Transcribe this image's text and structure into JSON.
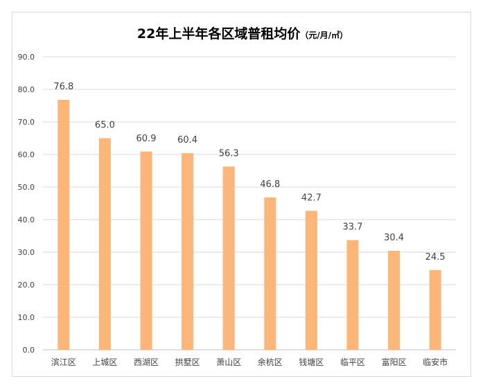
{
  "chart_data": {
    "type": "bar",
    "title": "22年上半年各区域普租均价",
    "title_unit": "（元/月/㎡）",
    "categories": [
      "滨江区",
      "上城区",
      "西湖区",
      "拱墅区",
      "萧山区",
      "余杭区",
      "钱塘区",
      "临平区",
      "富阳区",
      "临安市"
    ],
    "values": [
      76.8,
      65.0,
      60.9,
      60.4,
      56.3,
      46.8,
      42.7,
      33.7,
      30.4,
      24.5
    ],
    "value_labels": [
      "76.8",
      "65.0",
      "60.9",
      "60.4",
      "56.3",
      "46.8",
      "42.7",
      "33.7",
      "30.4",
      "24.5"
    ],
    "y_ticks": [
      "0.0",
      "10.0",
      "20.0",
      "30.0",
      "40.0",
      "50.0",
      "60.0",
      "70.0",
      "80.0",
      "90.0"
    ],
    "ylim": [
      0,
      90
    ],
    "xlabel": "",
    "ylabel": "",
    "grid": true,
    "legend": "none",
    "colors": {
      "bar": "#FDB67A",
      "grid": "#d9d9d9",
      "axis": "#bfbfbf"
    }
  }
}
